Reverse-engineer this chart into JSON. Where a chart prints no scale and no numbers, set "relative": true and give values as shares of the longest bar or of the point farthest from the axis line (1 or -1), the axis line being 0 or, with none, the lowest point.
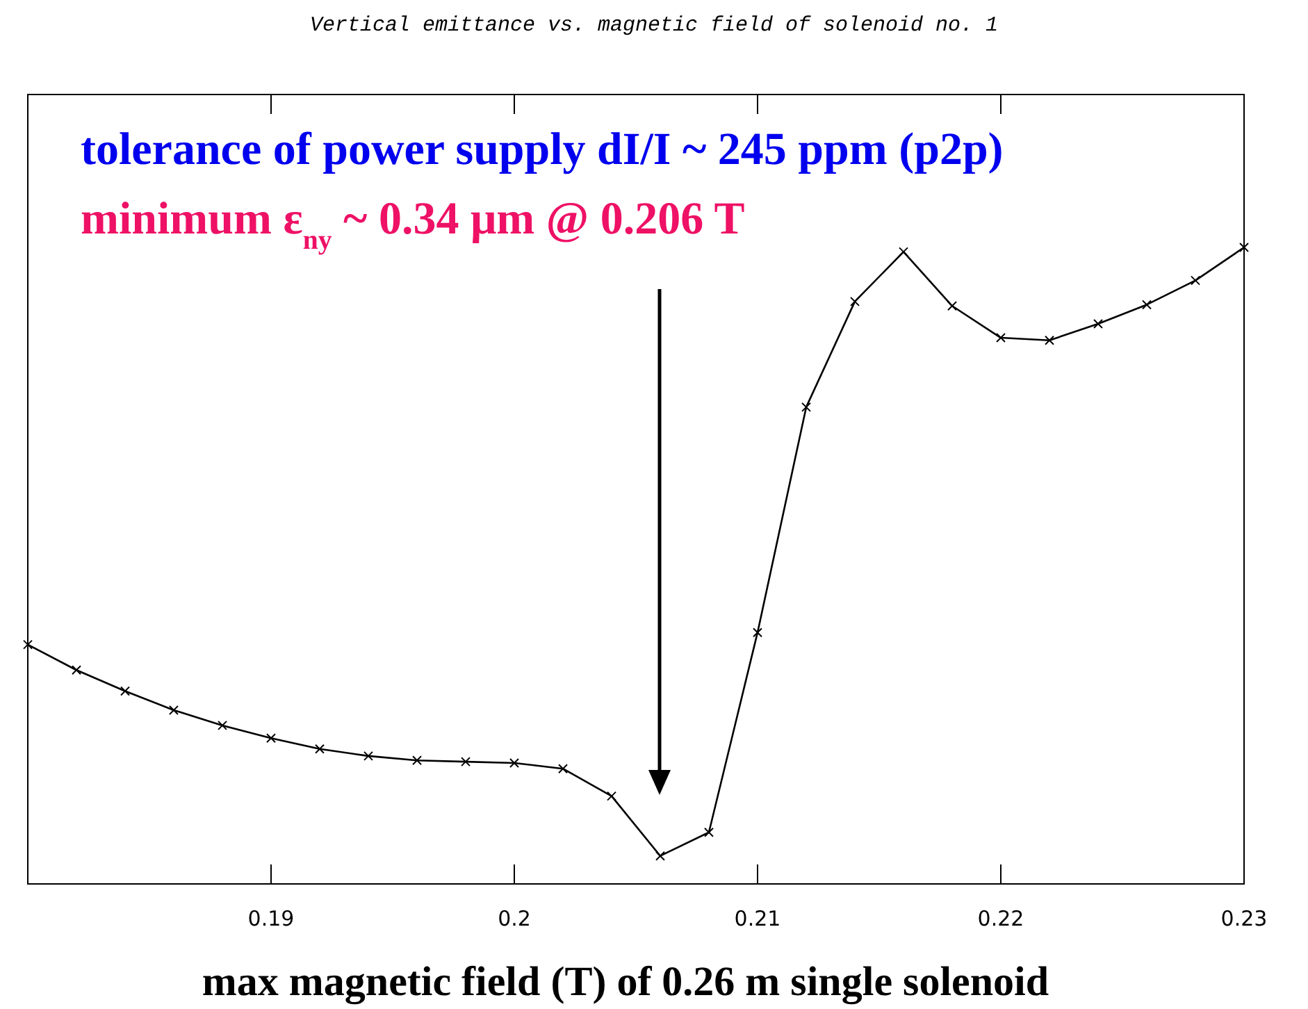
{
  "chart_data": {
    "type": "line",
    "title": "Vertical emittance vs. magnetic field of solenoid no. 1",
    "xlabel": "max magnetic field (T) of 0.26 m single solenoid",
    "annotations": [
      "tolerance of power supply dI/I ~ 245 ppm (p2p)",
      "minimum ε$_{ny}$ ~ 0.34 μm @ 0.206 T"
    ],
    "x": [
      0.18,
      0.182,
      0.184,
      0.186,
      0.188,
      0.19,
      0.192,
      0.194,
      0.196,
      0.198,
      0.2,
      0.202,
      0.204,
      0.206,
      0.208,
      0.21,
      0.212,
      0.214,
      0.216,
      0.218,
      0.22,
      0.222,
      0.224,
      0.226,
      0.228,
      0.23
    ],
    "series": [
      {
        "color": "#000000",
        "values": [
          0.376,
          0.336,
          0.303,
          0.273,
          0.249,
          0.229,
          0.212,
          0.201,
          0.194,
          0.192,
          0.19,
          0.181,
          0.138,
          0.044,
          0.081,
          0.395,
          0.749,
          0.915,
          0.993,
          0.908,
          0.858,
          0.854,
          0.88,
          0.91,
          0.948,
          1
        ]
      }
    ],
    "relative": true,
    "xlim": [
      0.18,
      0.23
    ],
    "xticks": [
      0.19,
      {
        "value": 0.2,
        "label": "0.2"
      },
      0.21,
      0.22,
      0.23
    ],
    "marker": "cross",
    "line_style": "solid",
    "tick_labels": "x"
  }
}
